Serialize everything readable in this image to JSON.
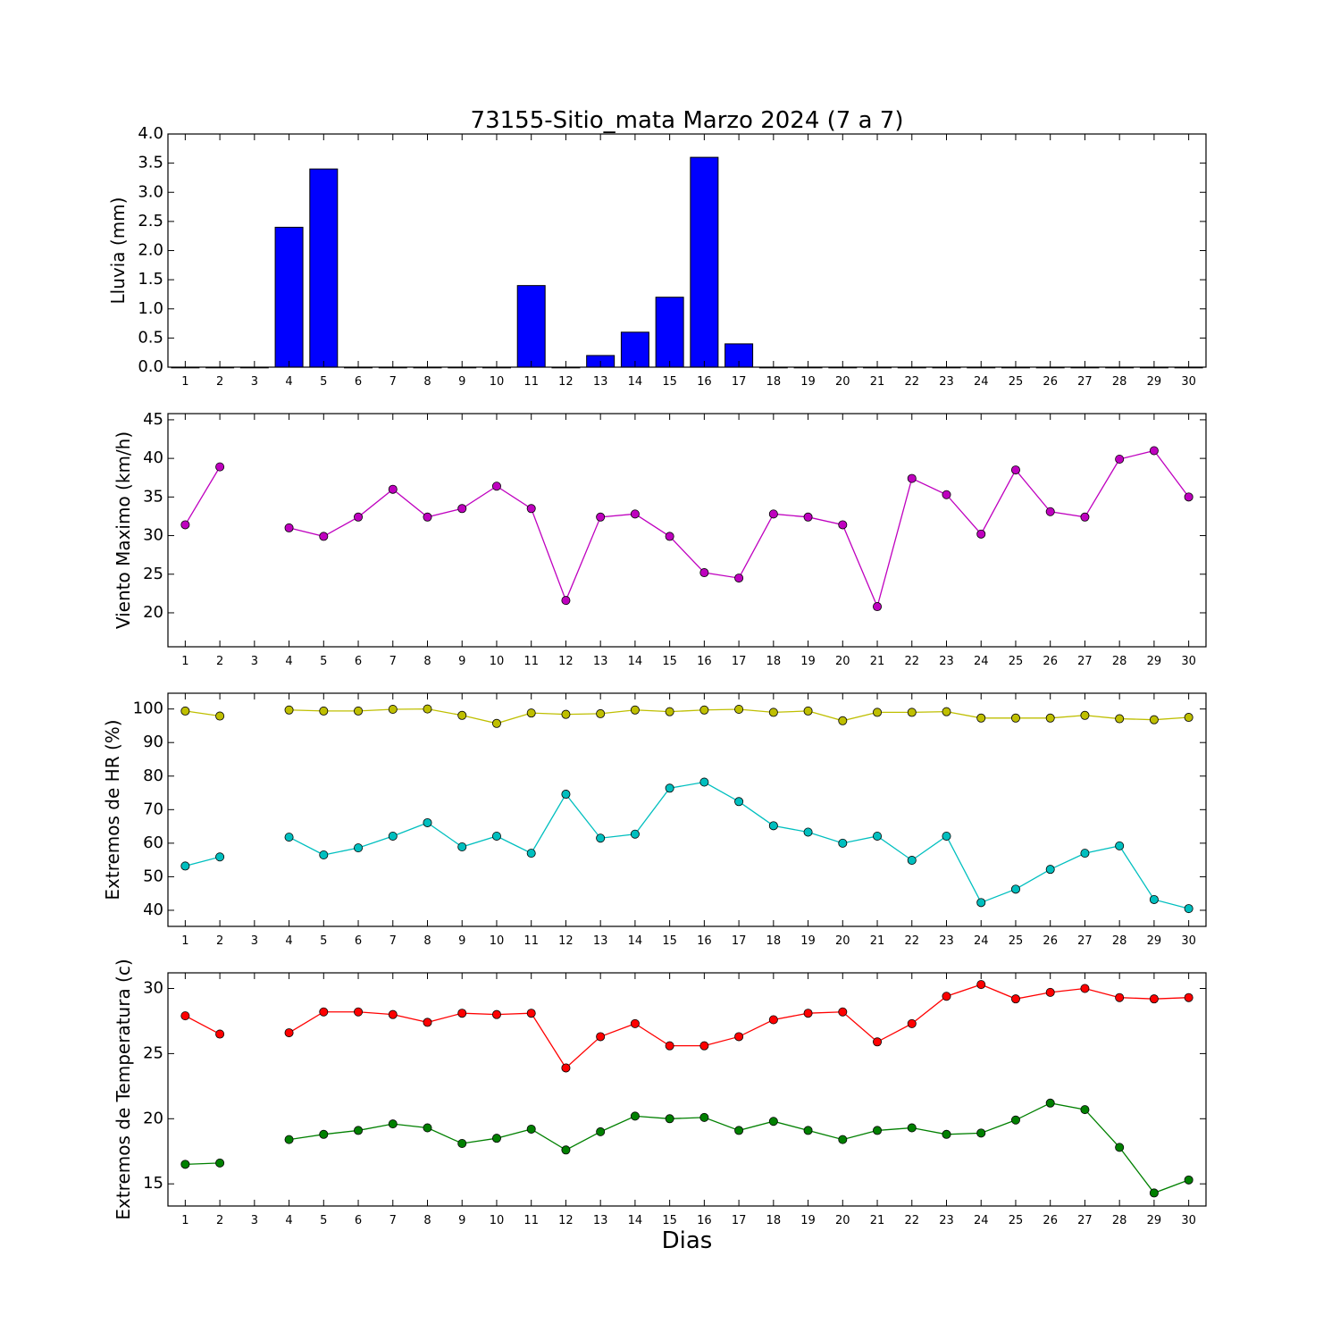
{
  "chart_data": [
    {
      "type": "bar",
      "title": "73155-Sitio_mata Marzo 2024  (7 a 7)",
      "ylabel": "Lluvia (mm)",
      "xlabel": "",
      "x": [
        1,
        2,
        3,
        4,
        5,
        6,
        7,
        8,
        9,
        10,
        11,
        12,
        13,
        14,
        15,
        16,
        17,
        18,
        19,
        20,
        21,
        22,
        23,
        24,
        25,
        26,
        27,
        28,
        29,
        30
      ],
      "xlim": [
        0.5,
        30.5
      ],
      "ylim": [
        0,
        4.0
      ],
      "yticks": [
        0.0,
        0.5,
        1.0,
        1.5,
        2.0,
        2.5,
        3.0,
        3.5,
        4.0
      ],
      "ytick_labels": [
        "0.0",
        "0.5",
        "1.0",
        "1.5",
        "2.0",
        "2.5",
        "3.0",
        "3.5",
        "4.0"
      ],
      "grid": false,
      "series": [
        {
          "color": "#0000ff",
          "values": [
            0,
            0,
            0,
            2.4,
            3.4,
            0,
            0,
            0,
            0,
            0,
            1.4,
            0,
            0.2,
            0.6,
            1.2,
            3.6,
            0.4,
            0,
            0,
            0,
            0,
            0,
            0,
            0,
            0,
            0,
            0,
            0,
            0,
            0
          ]
        }
      ]
    },
    {
      "type": "line",
      "ylabel": "Viento Maximo (km/h)",
      "x": [
        1,
        2,
        3,
        4,
        5,
        6,
        7,
        8,
        9,
        10,
        11,
        12,
        13,
        14,
        15,
        16,
        17,
        18,
        19,
        20,
        21,
        22,
        23,
        24,
        25,
        26,
        27,
        28,
        29,
        30
      ],
      "xlim": [
        0.5,
        30.5
      ],
      "ylim": [
        15.6,
        45.8
      ],
      "yticks": [
        20,
        25,
        30,
        35,
        40,
        45
      ],
      "ytick_labels": [
        "20",
        "25",
        "30",
        "35",
        "40",
        "45"
      ],
      "grid": false,
      "series": [
        {
          "color": "#bf00bf",
          "values": [
            31.4,
            38.9,
            null,
            31.0,
            29.9,
            32.4,
            36.0,
            32.4,
            33.5,
            36.4,
            33.5,
            21.6,
            32.4,
            32.8,
            29.9,
            25.2,
            24.5,
            32.8,
            32.4,
            31.4,
            20.8,
            37.4,
            35.3,
            30.2,
            38.5,
            33.1,
            32.4,
            39.9,
            41.0,
            35.0
          ]
        }
      ]
    },
    {
      "type": "line",
      "ylabel": "Extremos de HR (%)",
      "x": [
        1,
        2,
        3,
        4,
        5,
        6,
        7,
        8,
        9,
        10,
        11,
        12,
        13,
        14,
        15,
        16,
        17,
        18,
        19,
        20,
        21,
        22,
        23,
        24,
        25,
        26,
        27,
        28,
        29,
        30
      ],
      "xlim": [
        0.5,
        30.5
      ],
      "ylim": [
        35.2,
        104.7
      ],
      "yticks": [
        40,
        50,
        60,
        70,
        80,
        90,
        100
      ],
      "ytick_labels": [
        "40",
        "50",
        "60",
        "70",
        "80",
        "90",
        "100"
      ],
      "grid": false,
      "series": [
        {
          "color": "#bfbf00",
          "values": [
            99.4,
            97.9,
            null,
            99.7,
            99.4,
            99.4,
            99.9,
            100.0,
            98.1,
            95.7,
            98.8,
            98.4,
            98.6,
            99.7,
            99.2,
            99.7,
            99.9,
            99.0,
            99.4,
            96.5,
            99.0,
            99.0,
            99.2,
            97.3,
            97.3,
            97.3,
            98.1,
            97.1,
            96.8,
            97.5
          ]
        },
        {
          "color": "#00bfbf",
          "values": [
            53.2,
            55.9,
            null,
            61.8,
            56.5,
            58.6,
            62.1,
            66.1,
            58.9,
            62.1,
            57.0,
            74.6,
            61.5,
            62.7,
            76.4,
            78.2,
            72.4,
            65.2,
            63.3,
            60.0,
            62.1,
            54.9,
            62.1,
            42.3,
            46.3,
            52.2,
            57.0,
            59.2,
            43.2,
            40.5
          ]
        }
      ]
    },
    {
      "type": "line",
      "ylabel": "Extremos de Temperatura (c)",
      "xlabel": "Dias",
      "x": [
        1,
        2,
        3,
        4,
        5,
        6,
        7,
        8,
        9,
        10,
        11,
        12,
        13,
        14,
        15,
        16,
        17,
        18,
        19,
        20,
        21,
        22,
        23,
        24,
        25,
        26,
        27,
        28,
        29,
        30
      ],
      "xlim": [
        0.5,
        30.5
      ],
      "ylim": [
        13.3,
        31.2
      ],
      "yticks": [
        15,
        20,
        25,
        30
      ],
      "ytick_labels": [
        "15",
        "20",
        "25",
        "30"
      ],
      "grid": false,
      "series": [
        {
          "color": "#ff0000",
          "values": [
            27.9,
            26.5,
            null,
            26.6,
            28.2,
            28.2,
            28.0,
            27.4,
            28.1,
            28.0,
            28.1,
            23.9,
            26.3,
            27.3,
            25.6,
            25.6,
            26.3,
            27.6,
            28.1,
            28.2,
            25.9,
            27.3,
            29.4,
            30.3,
            29.2,
            29.7,
            30.0,
            29.3,
            29.2,
            29.3
          ]
        },
        {
          "color": "#008000",
          "values": [
            16.5,
            16.6,
            null,
            18.4,
            18.8,
            19.1,
            19.6,
            19.3,
            18.1,
            18.5,
            19.2,
            17.6,
            19.0,
            20.2,
            20.0,
            20.1,
            19.1,
            19.8,
            19.1,
            18.4,
            19.1,
            19.3,
            18.8,
            18.9,
            19.9,
            21.2,
            20.7,
            17.8,
            14.3,
            15.3
          ]
        }
      ]
    }
  ]
}
